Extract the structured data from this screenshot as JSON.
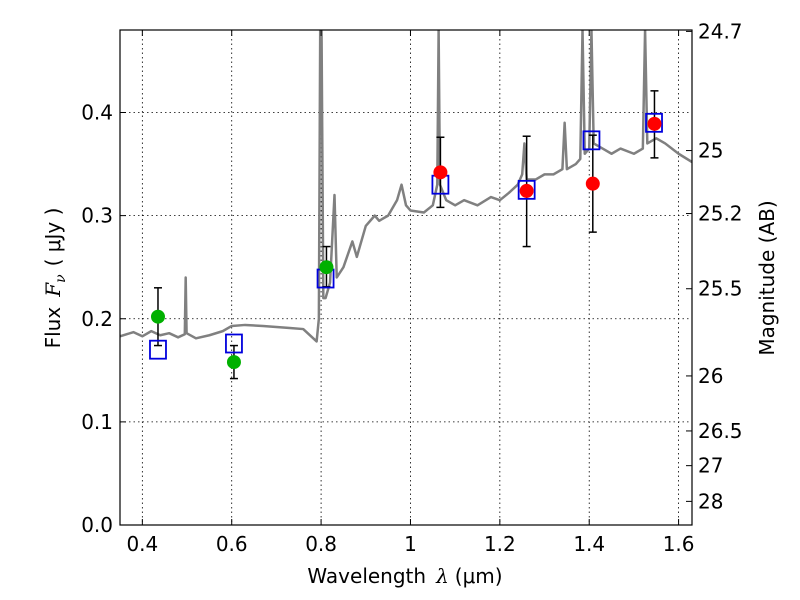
{
  "chart_data": {
    "type": "scatter",
    "xlabel_prefix": "Wavelength",
    "xlabel_symbol": "λ",
    "xlabel_unit": "(μm)",
    "ylabel_prefix": "Flux",
    "ylabel_symbol": "F",
    "ylabel_subscript": "ν",
    "ylabel_unit": "( μJy )",
    "y2label": "Magnitude (AB)",
    "xlim": [
      0.35,
      1.63
    ],
    "ylim": [
      0.0,
      0.48
    ],
    "grid": true,
    "xticks": [
      0.4,
      0.6,
      0.8,
      1.0,
      1.2,
      1.4,
      1.6
    ],
    "xtick_labels": [
      "0.4",
      "0.6",
      "0.8",
      "1",
      "1.2",
      "1.4",
      "1.6"
    ],
    "yticks": [
      0.0,
      0.1,
      0.2,
      0.3,
      0.4
    ],
    "ytick_labels": [
      "0.0",
      "0.1",
      "0.2",
      "0.3",
      "0.4"
    ],
    "mag_ticks": [
      24.7,
      25,
      25.2,
      25.5,
      26,
      26.5,
      27,
      28
    ],
    "mag_tick_labels": [
      "24.7",
      "25",
      "25.2",
      "25.5",
      "26",
      "26.5",
      "27",
      "28"
    ],
    "colors": {
      "model": "#808080",
      "green": "#00b000",
      "red": "#ff0000",
      "square": "#0000dd",
      "errorbar": "#000000"
    },
    "model_spectrum": [
      [
        0.35,
        0.183
      ],
      [
        0.38,
        0.187
      ],
      [
        0.4,
        0.183
      ],
      [
        0.42,
        0.188
      ],
      [
        0.44,
        0.184
      ],
      [
        0.46,
        0.186
      ],
      [
        0.48,
        0.182
      ],
      [
        0.495,
        0.185
      ],
      [
        0.497,
        0.24
      ],
      [
        0.499,
        0.186
      ],
      [
        0.52,
        0.181
      ],
      [
        0.55,
        0.184
      ],
      [
        0.58,
        0.188
      ],
      [
        0.6,
        0.193
      ],
      [
        0.63,
        0.194
      ],
      [
        0.67,
        0.193
      ],
      [
        0.7,
        0.192
      ],
      [
        0.73,
        0.191
      ],
      [
        0.76,
        0.19
      ],
      [
        0.78,
        0.182
      ],
      [
        0.79,
        0.178
      ],
      [
        0.795,
        0.2
      ],
      [
        0.798,
        0.48
      ],
      [
        0.801,
        0.48
      ],
      [
        0.805,
        0.22
      ],
      [
        0.81,
        0.22
      ],
      [
        0.82,
        0.235
      ],
      [
        0.83,
        0.32
      ],
      [
        0.835,
        0.24
      ],
      [
        0.85,
        0.25
      ],
      [
        0.87,
        0.275
      ],
      [
        0.88,
        0.26
      ],
      [
        0.9,
        0.29
      ],
      [
        0.92,
        0.3
      ],
      [
        0.93,
        0.295
      ],
      [
        0.95,
        0.3
      ],
      [
        0.97,
        0.315
      ],
      [
        0.98,
        0.33
      ],
      [
        0.99,
        0.31
      ],
      [
        1.0,
        0.305
      ],
      [
        1.03,
        0.303
      ],
      [
        1.05,
        0.31
      ],
      [
        1.06,
        0.33
      ],
      [
        1.063,
        0.48
      ],
      [
        1.066,
        0.33
      ],
      [
        1.08,
        0.315
      ],
      [
        1.1,
        0.31
      ],
      [
        1.12,
        0.315
      ],
      [
        1.15,
        0.31
      ],
      [
        1.18,
        0.318
      ],
      [
        1.2,
        0.315
      ],
      [
        1.22,
        0.322
      ],
      [
        1.24,
        0.33
      ],
      [
        1.25,
        0.34
      ],
      [
        1.255,
        0.37
      ],
      [
        1.26,
        0.335
      ],
      [
        1.28,
        0.335
      ],
      [
        1.3,
        0.34
      ],
      [
        1.32,
        0.34
      ],
      [
        1.34,
        0.345
      ],
      [
        1.345,
        0.39
      ],
      [
        1.35,
        0.345
      ],
      [
        1.37,
        0.35
      ],
      [
        1.38,
        0.355
      ],
      [
        1.385,
        0.48
      ],
      [
        1.39,
        0.36
      ],
      [
        1.4,
        0.365
      ],
      [
        1.405,
        0.48
      ],
      [
        1.41,
        0.37
      ],
      [
        1.43,
        0.365
      ],
      [
        1.45,
        0.36
      ],
      [
        1.47,
        0.365
      ],
      [
        1.5,
        0.36
      ],
      [
        1.52,
        0.365
      ],
      [
        1.525,
        0.48
      ],
      [
        1.53,
        0.37
      ],
      [
        1.55,
        0.375
      ],
      [
        1.57,
        0.37
      ],
      [
        1.6,
        0.36
      ],
      [
        1.63,
        0.352
      ]
    ],
    "green_points": [
      {
        "x": 0.435,
        "y": 0.202,
        "yerr_low": 0.174,
        "yerr_high": 0.23
      },
      {
        "x": 0.605,
        "y": 0.158,
        "yerr_low": 0.142,
        "yerr_high": 0.174
      },
      {
        "x": 0.812,
        "y": 0.25,
        "yerr_low": 0.231,
        "yerr_high": 0.27
      }
    ],
    "red_points": [
      {
        "x": 1.067,
        "y": 0.342,
        "yerr_low": 0.308,
        "yerr_high": 0.376
      },
      {
        "x": 1.26,
        "y": 0.324,
        "yerr_low": 0.27,
        "yerr_high": 0.377
      },
      {
        "x": 1.408,
        "y": 0.331,
        "yerr_low": 0.284,
        "yerr_high": 0.378
      },
      {
        "x": 1.546,
        "y": 0.389,
        "yerr_low": 0.356,
        "yerr_high": 0.421
      }
    ],
    "model_squares": [
      {
        "x": 0.435,
        "y": 0.17
      },
      {
        "x": 0.605,
        "y": 0.176
      },
      {
        "x": 0.81,
        "y": 0.239
      },
      {
        "x": 1.067,
        "y": 0.33
      },
      {
        "x": 1.26,
        "y": 0.325
      },
      {
        "x": 1.405,
        "y": 0.373
      },
      {
        "x": 1.545,
        "y": 0.39
      }
    ]
  }
}
